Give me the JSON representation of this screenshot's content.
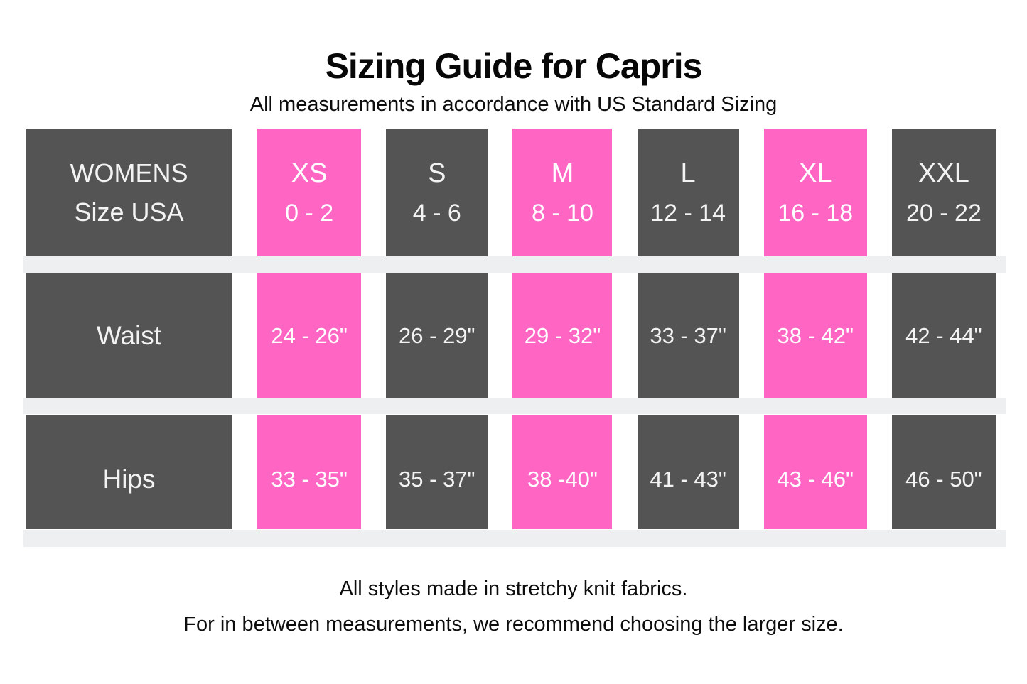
{
  "page": {
    "title": "Sizing Guide for Capris",
    "subtitle": "All measurements in accordance with US Standard Sizing",
    "footer_lines": [
      "All styles made in stretchy knit fabrics.",
      "For in between measurements, we recommend choosing the larger size."
    ]
  },
  "colors": {
    "background": "#ffffff",
    "highlight_pink": "#ff66c4",
    "dark_gray": "#545454",
    "divider_stripe": "#edeff1",
    "cell_text": "#f3f3f3",
    "body_text": "#0d0d0d"
  },
  "table": {
    "corner": {
      "line1": "WOMENS",
      "line2": "Size USA"
    },
    "columns": [
      {
        "size": "XS",
        "usa_range": "0 - 2",
        "highlight": true
      },
      {
        "size": "S",
        "usa_range": "4 - 6",
        "highlight": false
      },
      {
        "size": "M",
        "usa_range": "8 - 10",
        "highlight": true
      },
      {
        "size": "L",
        "usa_range": "12 - 14",
        "highlight": false
      },
      {
        "size": "XL",
        "usa_range": "16 - 18",
        "highlight": true
      },
      {
        "size": "XXL",
        "usa_range": "20 - 22",
        "highlight": false
      }
    ],
    "rows": [
      {
        "label": "Waist",
        "values": [
          "24 - 26\"",
          "26 - 29\"",
          "29 - 32\"",
          "33 - 37\"",
          "38 - 42\"",
          "42 - 44\""
        ]
      },
      {
        "label": "Hips",
        "values": [
          "33 - 35\"",
          "35 - 37\"",
          "38 -40\"",
          "41 - 43\"",
          "43 - 46\"",
          "46 - 50\""
        ]
      }
    ]
  },
  "chart_data": {
    "type": "table",
    "title": "Sizing Guide for Capris",
    "subtitle": "All measurements in accordance with US Standard Sizing",
    "columns": [
      "WOMENS Size USA",
      "XS 0 - 2",
      "S 4 - 6",
      "M 8 - 10",
      "L 12 - 14",
      "XL 16 - 18",
      "XXL 20 - 22"
    ],
    "rows": [
      [
        "Waist",
        "24 - 26\"",
        "26 - 29\"",
        "29 - 32\"",
        "33 - 37\"",
        "38 - 42\"",
        "42 - 44\""
      ],
      [
        "Hips",
        "33 - 35\"",
        "35 - 37\"",
        "38 -40\"",
        "41 - 43\"",
        "43 - 46\"",
        "46 - 50\""
      ]
    ],
    "highlighted_columns": [
      "XS",
      "M",
      "XL"
    ],
    "highlight_color": "#ff66c4",
    "notes": [
      "All styles made in stretchy knit fabrics.",
      "For in between measurements, we recommend choosing the larger size."
    ]
  }
}
